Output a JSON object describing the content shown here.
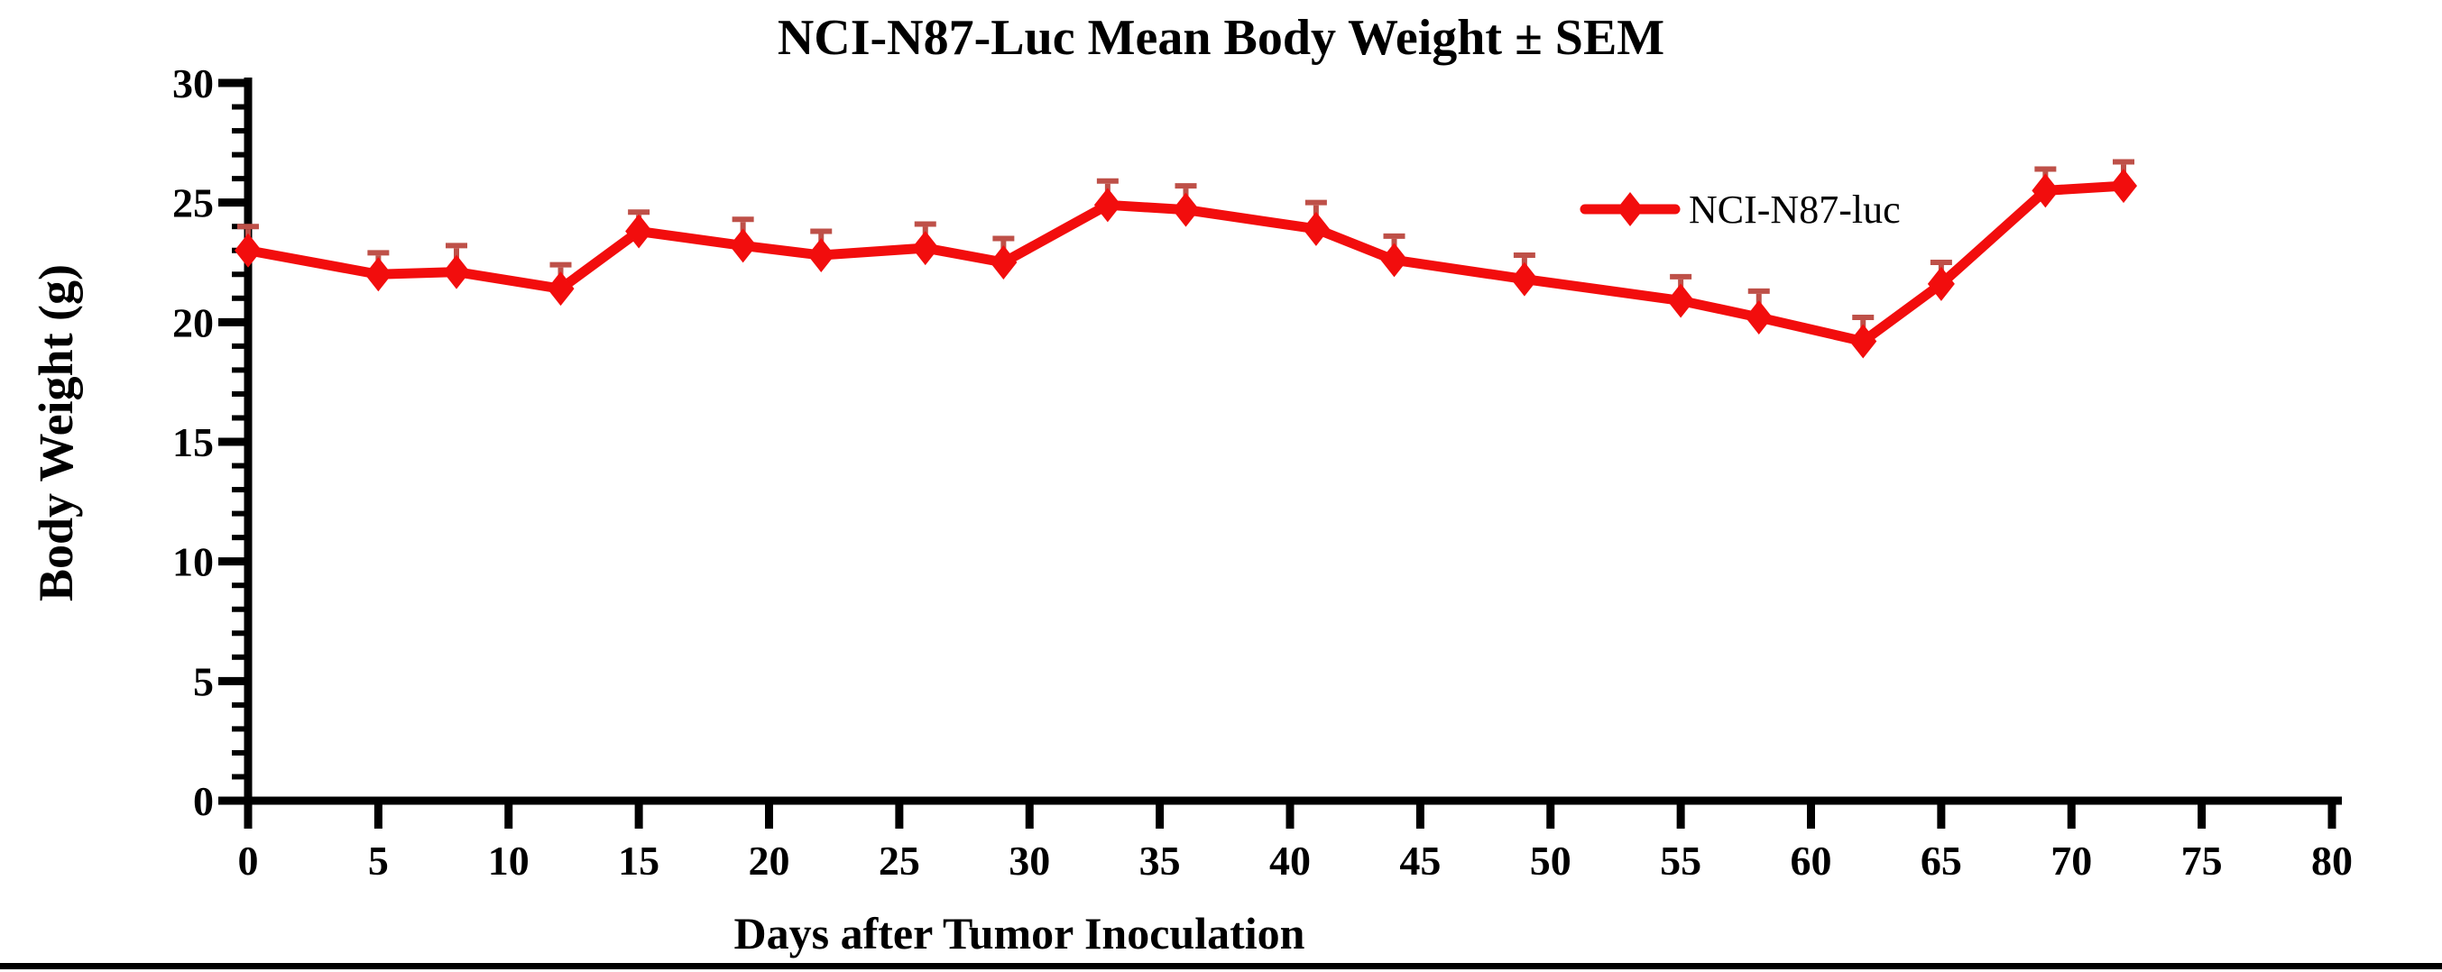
{
  "page": {
    "background": "#ffffff",
    "bottom_border_color": "#000000"
  },
  "chart_data": {
    "type": "line",
    "title": "NCI-N87-Luc Mean Body Weight ± SEM",
    "xlabel": "Days after Tumor Inoculation",
    "ylabel": "Body Weight (g)",
    "xlim": [
      0,
      80
    ],
    "ylim": [
      0,
      30
    ],
    "x_ticks": [
      0,
      5,
      10,
      15,
      20,
      25,
      30,
      35,
      40,
      45,
      50,
      55,
      60,
      65,
      70,
      75,
      80
    ],
    "y_ticks": [
      0,
      5,
      10,
      15,
      20,
      25,
      30
    ],
    "y_minor_tick_step": 1,
    "grid": false,
    "error_bars": "upper SEM only",
    "legend": {
      "label": "NCI-N87-luc",
      "position": "inside-upper-right"
    },
    "series": [
      {
        "name": "NCI-N87-luc",
        "color": "#F20D0D",
        "error_bar_color": "#BE5048",
        "marker": "diamond",
        "x": [
          0,
          5,
          8,
          12,
          15,
          19,
          22,
          26,
          29,
          33,
          36,
          41,
          44,
          49,
          55,
          58,
          62,
          65,
          69,
          72
        ],
        "y": [
          23.0,
          22.0,
          22.1,
          21.4,
          23.8,
          23.2,
          22.8,
          23.1,
          22.5,
          24.9,
          24.7,
          23.9,
          22.6,
          21.8,
          20.9,
          20.2,
          19.2,
          21.6,
          25.5,
          25.7
        ],
        "sem": [
          1.0,
          0.9,
          1.1,
          1.0,
          0.8,
          1.1,
          1.0,
          1.0,
          1.0,
          1.0,
          1.0,
          1.1,
          1.0,
          1.0,
          1.0,
          1.1,
          1.0,
          0.9,
          0.9,
          1.0
        ]
      }
    ]
  }
}
